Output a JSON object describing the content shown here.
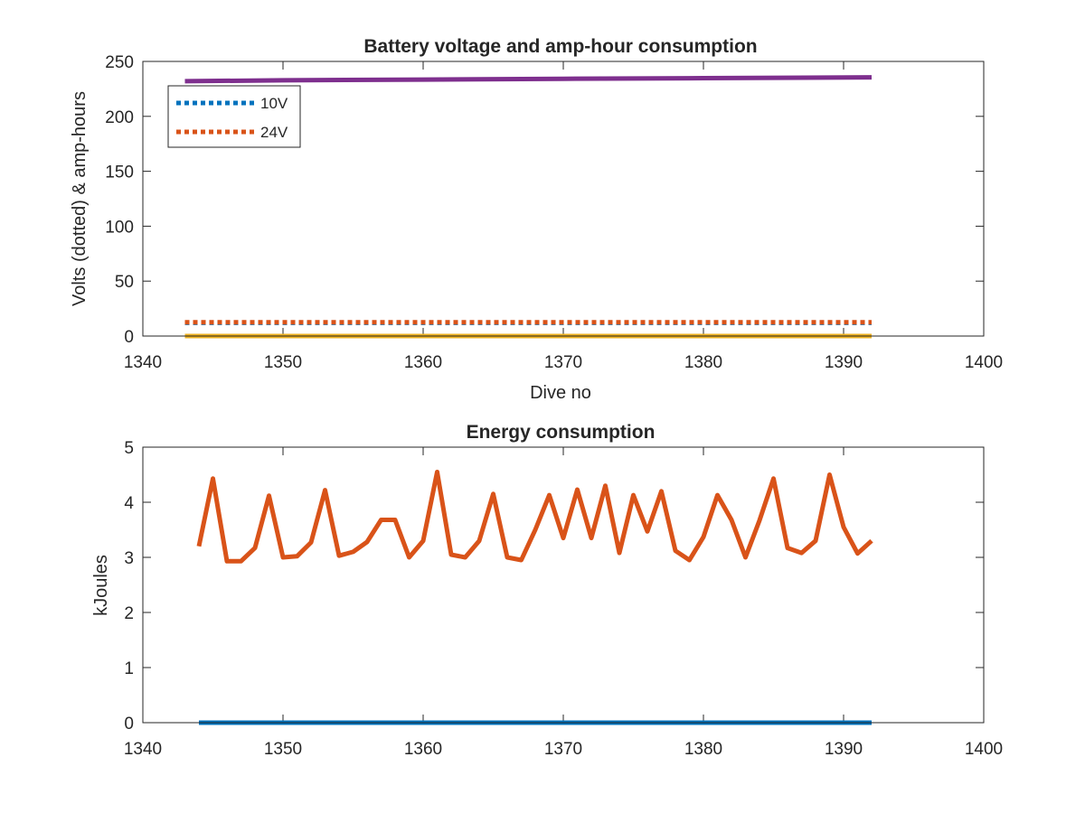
{
  "chart_data": [
    {
      "type": "line",
      "title": "Battery voltage and amp-hour consumption",
      "xlabel": "Dive no",
      "ylabel": "Volts (dotted) & amp-hours",
      "xlim": [
        1340,
        1400
      ],
      "ylim": [
        0,
        250
      ],
      "xticks": [
        1340,
        1350,
        1360,
        1370,
        1380,
        1390,
        1400
      ],
      "yticks": [
        0,
        50,
        100,
        150,
        200,
        250
      ],
      "grid": false,
      "legend": {
        "placement": "top-left",
        "entries": [
          "10V",
          "24V"
        ]
      },
      "series": [
        {
          "name": "10V",
          "style": "dotted",
          "color": "#0072BD",
          "x": [
            1343,
            1392
          ],
          "y": [
            12,
            12
          ]
        },
        {
          "name": "24V",
          "style": "dotted",
          "color": "#D95319",
          "x": [
            1343,
            1392
          ],
          "y": [
            12.5,
            12.5
          ]
        },
        {
          "style": "solid",
          "color": "#EDB120",
          "x": [
            1343,
            1392
          ],
          "y": [
            0,
            0
          ]
        },
        {
          "style": "solid",
          "color": "#7E2F8E",
          "x": [
            1343,
            1350,
            1360,
            1370,
            1380,
            1392
          ],
          "y": [
            232,
            232.8,
            233.5,
            234.2,
            234.8,
            235.5
          ]
        }
      ]
    },
    {
      "type": "line",
      "title": "Energy consumption",
      "xlabel": "",
      "ylabel": "kJoules",
      "xlim": [
        1340,
        1400
      ],
      "ylim": [
        0,
        5
      ],
      "xticks": [
        1340,
        1350,
        1360,
        1370,
        1380,
        1390,
        1400
      ],
      "yticks": [
        0,
        1,
        2,
        3,
        4,
        5
      ],
      "grid": false,
      "series": [
        {
          "style": "solid",
          "color": "#0072BD",
          "x": [
            1344,
            1392
          ],
          "y": [
            0,
            0
          ]
        },
        {
          "style": "solid",
          "color": "#D95319",
          "x": [
            1344,
            1345,
            1346,
            1347,
            1348,
            1349,
            1350,
            1351,
            1352,
            1353,
            1354,
            1355,
            1356,
            1357,
            1358,
            1359,
            1360,
            1361,
            1362,
            1363,
            1364,
            1365,
            1366,
            1367,
            1368,
            1369,
            1370,
            1371,
            1372,
            1373,
            1374,
            1375,
            1376,
            1377,
            1378,
            1379,
            1380,
            1381,
            1382,
            1383,
            1384,
            1385,
            1386,
            1387,
            1388,
            1389,
            1390,
            1391,
            1392
          ],
          "y": [
            3.2,
            4.43,
            2.93,
            2.93,
            3.17,
            4.12,
            3.0,
            3.02,
            3.27,
            4.22,
            3.03,
            3.1,
            3.28,
            3.68,
            3.68,
            3.0,
            3.3,
            4.55,
            3.05,
            3.0,
            3.3,
            4.15,
            3.0,
            2.95,
            3.5,
            4.13,
            3.35,
            4.23,
            3.35,
            4.3,
            3.08,
            4.13,
            3.47,
            4.2,
            3.12,
            2.95,
            3.37,
            4.13,
            3.68,
            3.0,
            3.67,
            4.43,
            3.17,
            3.08,
            3.3,
            4.5,
            3.55,
            3.07,
            3.3
          ]
        }
      ]
    }
  ]
}
